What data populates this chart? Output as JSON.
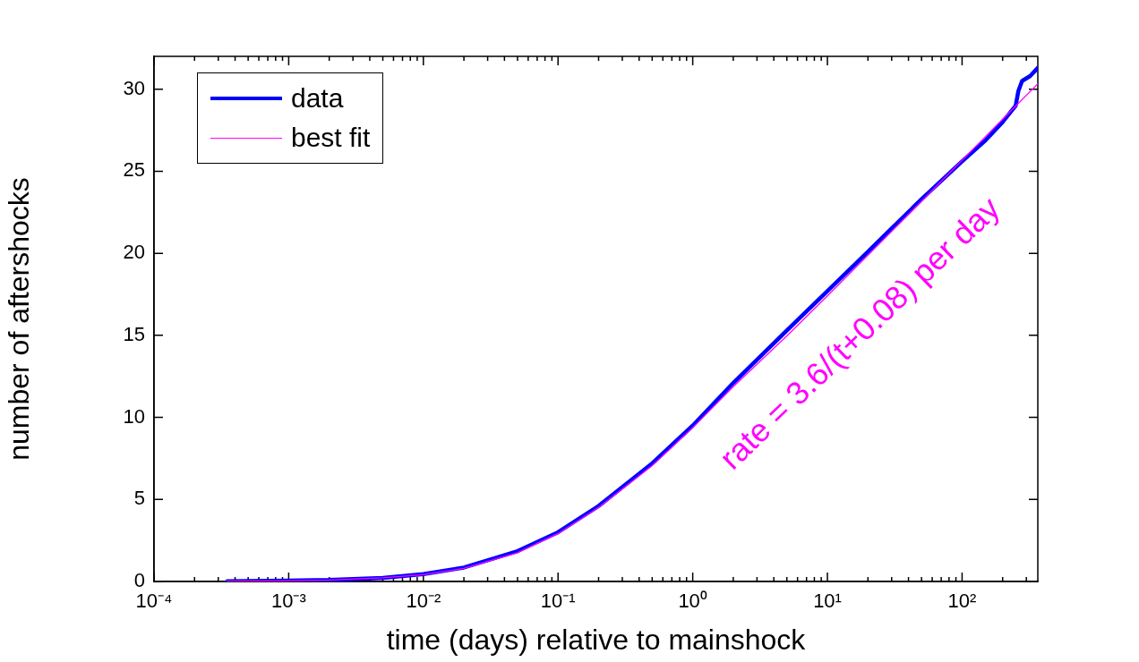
{
  "chart_data": {
    "type": "line",
    "xlabel": "time (days) relative to mainshock",
    "ylabel": "number of aftershocks",
    "log": "x",
    "xlim": [
      0.0001,
      365
    ],
    "ylim": [
      0,
      32
    ],
    "xticks": [
      {
        "value": 0.0001,
        "label": "10⁻⁴"
      },
      {
        "value": 0.001,
        "label": "10⁻³"
      },
      {
        "value": 0.01,
        "label": "10⁻²"
      },
      {
        "value": 0.1,
        "label": "10⁻¹"
      },
      {
        "value": 1,
        "label": "10⁰"
      },
      {
        "value": 10,
        "label": "10¹"
      },
      {
        "value": 100,
        "label": "10²"
      }
    ],
    "yticks": [
      0,
      5,
      10,
      15,
      20,
      25,
      30
    ],
    "grid": false,
    "legend": "top left",
    "marker": "none",
    "annotations": [
      "rate = 3.6/(t+0.08) per day"
    ],
    "series": [
      {
        "name": "data",
        "color": "#0000ff",
        "x": [
          0.00035,
          0.001,
          0.002,
          0.005,
          0.01,
          0.02,
          0.05,
          0.1,
          0.2,
          0.5,
          1,
          2,
          5,
          10,
          20,
          50,
          100,
          150,
          200,
          250,
          262,
          279,
          320,
          365
        ],
        "values": [
          0.02,
          0.05,
          0.09,
          0.22,
          0.45,
          0.85,
          1.85,
          3.0,
          4.6,
          7.2,
          9.5,
          12.1,
          15.3,
          17.7,
          20.1,
          23.3,
          25.6,
          26.9,
          28.0,
          29.0,
          29.9,
          30.5,
          30.8,
          31.3
        ]
      },
      {
        "name": "best fit",
        "type": "line",
        "color": "#ff00ff",
        "x": [
          0.00035,
          0.001,
          0.002,
          0.005,
          0.01,
          0.02,
          0.05,
          0.1,
          0.2,
          0.5,
          1,
          2,
          5,
          10,
          20,
          50,
          100,
          200,
          365
        ],
        "values": [
          0.02,
          0.05,
          0.09,
          0.22,
          0.42,
          0.8,
          1.75,
          2.92,
          4.51,
          7.06,
          9.37,
          11.87,
          14.96,
          17.4,
          19.88,
          23.17,
          25.67,
          28.17,
          30.33
        ]
      }
    ]
  }
}
